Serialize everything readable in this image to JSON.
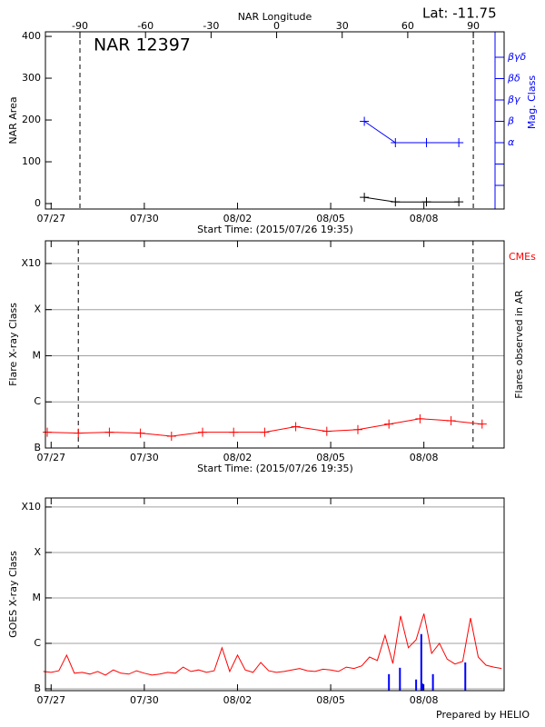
{
  "footer": "Prepared by HELIO",
  "chart_data": [
    {
      "type": "line",
      "annotations": [
        "Lat: -11.75",
        "NAR 12397"
      ],
      "x2label": "NAR Longitude",
      "ylabel": "NAR Area",
      "y2label": "Mag. Class",
      "xlabel": "Start Time: (2015/07/26 19:35)",
      "xlim": [
        "2015-07-26T19:35Z",
        "2015-08-10T14:00Z"
      ],
      "xticks": [
        {
          "value": "2015-07-27T00:00Z",
          "label": "07/27"
        },
        {
          "value": "2015-07-30T00:00Z",
          "label": "07/30"
        },
        {
          "value": "2015-08-02T00:00Z",
          "label": "08/02"
        },
        {
          "value": "2015-08-05T00:00Z",
          "label": "08/05"
        },
        {
          "value": "2015-08-08T00:00Z",
          "label": "08/08"
        }
      ],
      "x2lim": [
        -105.8,
        104.1
      ],
      "x2ticks": [
        -90,
        -60,
        -30,
        0,
        30,
        60,
        90
      ],
      "ylim": [
        -13,
        411
      ],
      "yticks": [
        0,
        100,
        200,
        300,
        400
      ],
      "y2categories": [
        null,
        null,
        "α",
        "β",
        "βγ",
        "βδ",
        "βγδ"
      ],
      "y2color": "#0000ff",
      "vlines": [
        -90,
        90
      ],
      "series": [
        {
          "color": "#000000",
          "marker": "+",
          "x": [
            "2015-08-06T02:00Z",
            "2015-08-07T02:00Z",
            "2015-08-08T02:00Z",
            "2015-08-09T03:00Z"
          ],
          "values": [
            15,
            4,
            4,
            4
          ]
        },
        {
          "color": "#0000ff",
          "marker": "+",
          "axis": "y2",
          "x": [
            "2015-08-06T02:00Z",
            "2015-08-07T02:00Z",
            "2015-08-08T02:00Z",
            "2015-08-09T03:00Z"
          ],
          "values": [
            "β",
            "α",
            "α",
            "α"
          ]
        }
      ]
    },
    {
      "type": "line",
      "annotations": [
        "CMEs"
      ],
      "ylabel": "Flare X-ray Class",
      "y2label": "Flares observed in AR",
      "xlabel": "Start Time: (2015/07/26 19:35)",
      "xlim": [
        "2015-07-26T19:35Z",
        "2015-08-10T14:00Z"
      ],
      "xticks": [
        {
          "value": "2015-07-27T00:00Z",
          "label": "07/27"
        },
        {
          "value": "2015-07-30T00:00Z",
          "label": "07/30"
        },
        {
          "value": "2015-08-02T00:00Z",
          "label": "08/02"
        },
        {
          "value": "2015-08-05T00:00Z",
          "label": "08/05"
        },
        {
          "value": "2015-08-08T00:00Z",
          "label": "08/08"
        }
      ],
      "ylog": true,
      "ylim": [
        1e-07,
        0.0031
      ],
      "yticks": [
        {
          "value": 1e-07,
          "label": "B"
        },
        {
          "value": 1e-06,
          "label": "C"
        },
        {
          "value": 1e-05,
          "label": "M"
        },
        {
          "value": 0.0001,
          "label": "X"
        },
        {
          "value": 0.001,
          "label": "X10"
        }
      ],
      "grid": true,
      "vlines": [
        "2015-07-27T21:00Z",
        "2015-08-09T14:00Z"
      ],
      "series": [
        {
          "color": "#ff0000",
          "marker": "+",
          "x": [
            "2015-07-26T21:00Z",
            "2015-07-27T21:00Z",
            "2015-07-28T21:00Z",
            "2015-07-29T21:00Z",
            "2015-07-30T21:00Z",
            "2015-07-31T21:00Z",
            "2015-08-01T21:00Z",
            "2015-08-02T21:00Z",
            "2015-08-03T21:00Z",
            "2015-08-04T21:00Z",
            "2015-08-05T21:00Z",
            "2015-08-06T21:00Z",
            "2015-08-07T21:00Z",
            "2015-08-08T21:00Z",
            "2015-08-09T21:00Z"
          ],
          "values": [
            2.2e-07,
            2.1e-07,
            2.2e-07,
            2.1e-07,
            1.8e-07,
            2.2e-07,
            2.2e-07,
            2.2e-07,
            2.9e-07,
            2.3e-07,
            2.5e-07,
            3.3e-07,
            4.3e-07,
            3.9e-07,
            3.3e-07
          ]
        }
      ]
    },
    {
      "type": "line",
      "ylabel": "GOES X-ray Class",
      "xlim": [
        "2015-07-26T19:35Z",
        "2015-08-10T14:00Z"
      ],
      "xticks": [
        {
          "value": "2015-07-27T00:00Z",
          "label": "07/27"
        },
        {
          "value": "2015-07-30T00:00Z",
          "label": "07/30"
        },
        {
          "value": "2015-08-02T00:00Z",
          "label": "08/02"
        },
        {
          "value": "2015-08-05T00:00Z",
          "label": "08/05"
        },
        {
          "value": "2015-08-08T00:00Z",
          "label": "08/08"
        }
      ],
      "ylog": true,
      "ylim": [
        9.1e-08,
        0.00158
      ],
      "yticks": [
        {
          "value": 1e-07,
          "label": "B"
        },
        {
          "value": 1e-06,
          "label": "C"
        },
        {
          "value": 1e-05,
          "label": "M"
        },
        {
          "value": 0.0001,
          "label": "X"
        },
        {
          "value": 0.001,
          "label": "X10"
        }
      ],
      "grid": true,
      "series": [
        {
          "color": "#ff0000",
          "x": [
            "2015-07-26T18:00Z",
            "2015-07-27T00:00Z",
            "2015-07-27T06:00Z",
            "2015-07-27T12:00Z",
            "2015-07-27T18:00Z",
            "2015-07-28T00:00Z",
            "2015-07-28T06:00Z",
            "2015-07-28T12:00Z",
            "2015-07-28T18:00Z",
            "2015-07-29T00:00Z",
            "2015-07-29T06:00Z",
            "2015-07-29T12:00Z",
            "2015-07-29T18:00Z",
            "2015-07-30T00:00Z",
            "2015-07-30T06:00Z",
            "2015-07-30T12:00Z",
            "2015-07-30T18:00Z",
            "2015-07-31T00:00Z",
            "2015-07-31T06:00Z",
            "2015-07-31T12:00Z",
            "2015-07-31T18:00Z",
            "2015-08-01T00:00Z",
            "2015-08-01T06:00Z",
            "2015-08-01T12:00Z",
            "2015-08-01T18:00Z",
            "2015-08-02T00:00Z",
            "2015-08-02T06:00Z",
            "2015-08-02T12:00Z",
            "2015-08-02T18:00Z",
            "2015-08-03T00:00Z",
            "2015-08-03T06:00Z",
            "2015-08-03T12:00Z",
            "2015-08-03T18:00Z",
            "2015-08-04T00:00Z",
            "2015-08-04T06:00Z",
            "2015-08-04T12:00Z",
            "2015-08-04T18:00Z",
            "2015-08-05T00:00Z",
            "2015-08-05T06:00Z",
            "2015-08-05T12:00Z",
            "2015-08-05T18:00Z",
            "2015-08-06T00:00Z",
            "2015-08-06T06:00Z",
            "2015-08-06T12:00Z",
            "2015-08-06T18:00Z",
            "2015-08-07T00:00Z",
            "2015-08-07T06:00Z",
            "2015-08-07T12:00Z",
            "2015-08-07T18:00Z",
            "2015-08-08T00:00Z",
            "2015-08-08T06:00Z",
            "2015-08-08T12:00Z",
            "2015-08-08T18:00Z",
            "2015-08-09T00:00Z",
            "2015-08-09T06:00Z",
            "2015-08-09T12:00Z",
            "2015-08-09T18:00Z",
            "2015-08-10T00:00Z",
            "2015-08-10T06:00Z",
            "2015-08-10T12:00Z"
          ],
          "values": [
            2.4e-07,
            2.3e-07,
            2.5e-07,
            5.5e-07,
            2.2e-07,
            2.3e-07,
            2.1e-07,
            2.4e-07,
            2e-07,
            2.6e-07,
            2.2e-07,
            2.1e-07,
            2.5e-07,
            2.2e-07,
            2e-07,
            2.1e-07,
            2.3e-07,
            2.2e-07,
            3e-07,
            2.4e-07,
            2.6e-07,
            2.3e-07,
            2.5e-07,
            8e-07,
            2.4e-07,
            5.5e-07,
            2.6e-07,
            2.3e-07,
            3.8e-07,
            2.5e-07,
            2.3e-07,
            2.4e-07,
            2.6e-07,
            2.8e-07,
            2.5e-07,
            2.4e-07,
            2.7e-07,
            2.6e-07,
            2.4e-07,
            3e-07,
            2.8e-07,
            3.2e-07,
            5e-07,
            4.2e-07,
            1.5e-06,
            3.6e-07,
            4e-06,
            8e-07,
            1.2e-06,
            4.5e-06,
            6e-07,
            1e-06,
            4.5e-07,
            3.5e-07,
            4e-07,
            3.6e-06,
            5e-07,
            3.3e-07,
            3e-07,
            2.8e-07
          ]
        },
        {
          "color": "#0000ff",
          "type": "bar",
          "x": [
            "2015-08-06T21:00Z",
            "2015-08-07T05:30Z",
            "2015-08-07T18:00Z",
            "2015-08-07T22:00Z",
            "2015-08-07T23:00Z",
            "2015-08-08T07:00Z",
            "2015-08-09T08:00Z"
          ],
          "values": [
            2.1e-07,
            2.9e-07,
            1.6e-07,
            1.6e-06,
            1.3e-07,
            2.1e-07,
            3.8e-07
          ]
        }
      ]
    }
  ]
}
